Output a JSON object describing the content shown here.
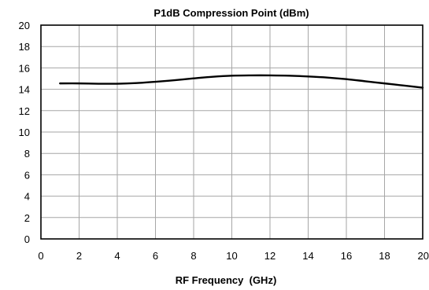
{
  "chart_data": {
    "type": "line",
    "title": "P1dB Compression Point (dBm)",
    "xlabel": "RF Frequency  (GHz)",
    "ylabel": "",
    "xlim": [
      0,
      20
    ],
    "ylim": [
      0,
      20
    ],
    "xticks": [
      "0",
      "2",
      "4",
      "6",
      "8",
      "10",
      "12",
      "14",
      "16",
      "18",
      "20"
    ],
    "yticks": [
      "0",
      "2",
      "4",
      "6",
      "8",
      "10",
      "12",
      "14",
      "16",
      "18",
      "20"
    ],
    "grid": true,
    "legend": "none",
    "series": [
      {
        "color": "#000000",
        "x": [
          1,
          2,
          3,
          4,
          5,
          6,
          7,
          8,
          9,
          10,
          11,
          12,
          13,
          14,
          15,
          16,
          17,
          18,
          19,
          20
        ],
        "y": [
          14.55,
          14.55,
          14.52,
          14.52,
          14.58,
          14.7,
          14.85,
          15.02,
          15.17,
          15.27,
          15.3,
          15.3,
          15.27,
          15.2,
          15.1,
          14.95,
          14.75,
          14.55,
          14.35,
          14.15
        ]
      }
    ]
  }
}
